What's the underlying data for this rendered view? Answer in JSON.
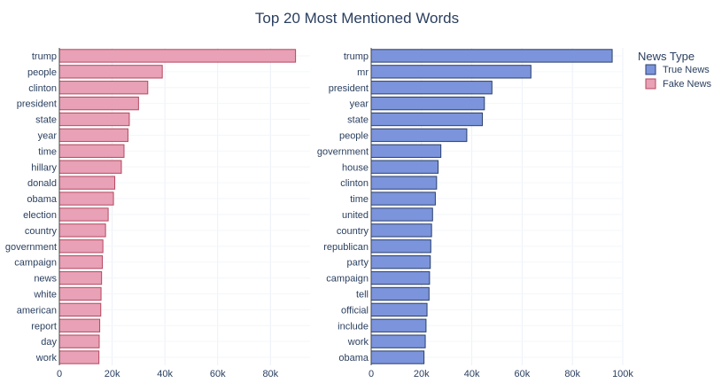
{
  "chart_data": {
    "title": "Top 20 Most Mentioned Words",
    "legend": {
      "title": "News Type",
      "placement": "top-right",
      "entries": [
        {
          "label": "True News",
          "color": "#7B94DB",
          "stroke": "#2A3F6B"
        },
        {
          "label": "Fake News",
          "color": "#E8A1B6",
          "stroke": "#B5475F"
        }
      ]
    },
    "panels": [
      {
        "type": "bar",
        "orientation": "horizontal",
        "series": "Fake News",
        "color": "#E8A1B6",
        "stroke": "#B5475F",
        "categories": [
          "trump",
          "people",
          "clinton",
          "president",
          "state",
          "year",
          "time",
          "hillary",
          "donald",
          "obama",
          "election",
          "country",
          "government",
          "campaign",
          "news",
          "white",
          "american",
          "report",
          "day",
          "work"
        ],
        "values": [
          89500,
          39000,
          33500,
          30000,
          26500,
          26000,
          24500,
          23500,
          21000,
          20500,
          18500,
          17500,
          16500,
          16300,
          16000,
          15800,
          15700,
          15300,
          15100,
          15000
        ],
        "xlim": [
          0,
          95000
        ],
        "xticks": [
          0,
          20000,
          40000,
          60000,
          80000
        ],
        "xtick_labels": [
          "0",
          "20k",
          "40k",
          "60k",
          "80k"
        ],
        "grid": true
      },
      {
        "type": "bar",
        "orientation": "horizontal",
        "series": "True News",
        "color": "#7B94DB",
        "stroke": "#2A3F6B",
        "categories": [
          "trump",
          "mr",
          "president",
          "year",
          "state",
          "people",
          "government",
          "house",
          "clinton",
          "time",
          "united",
          "country",
          "republican",
          "party",
          "campaign",
          "tell",
          "official",
          "include",
          "work",
          "obama"
        ],
        "values": [
          95800,
          63500,
          48000,
          45000,
          44200,
          38000,
          27700,
          26600,
          26000,
          25500,
          24400,
          24000,
          23700,
          23500,
          23200,
          23000,
          22200,
          21800,
          21500,
          21000
        ],
        "xlim": [
          0,
          100000
        ],
        "xticks": [
          0,
          20000,
          40000,
          60000,
          80000,
          100000
        ],
        "xtick_labels": [
          "0",
          "20k",
          "40k",
          "60k",
          "80k",
          "100k"
        ],
        "grid": true
      }
    ]
  }
}
